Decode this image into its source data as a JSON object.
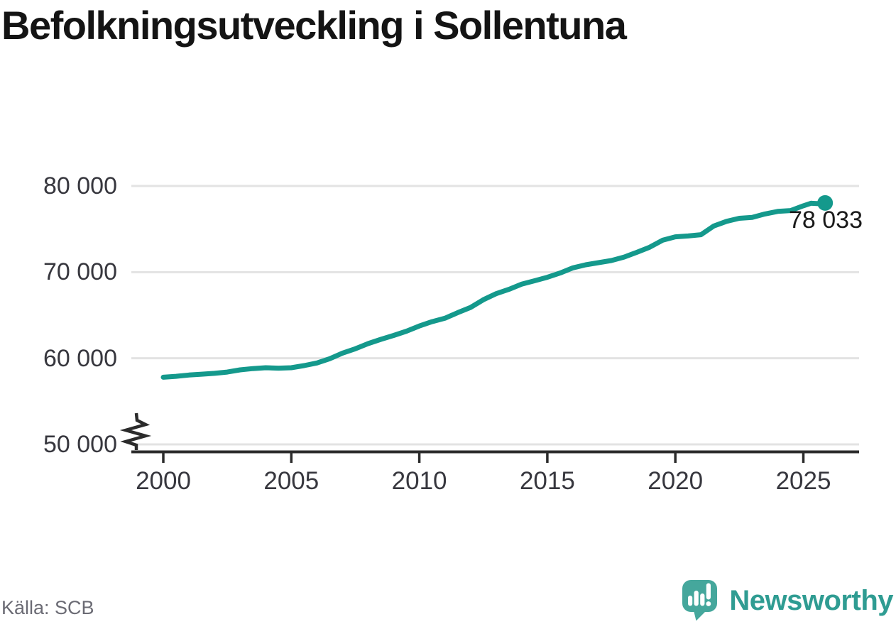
{
  "header": {
    "title": "Befolkningsutveckling i Sollentuna"
  },
  "chart": {
    "end_label": "78 033",
    "y_axis": {
      "tick_labels": [
        "80 000",
        "70 000",
        "60 000",
        "50 000"
      ],
      "tick_values": [
        80000,
        70000,
        60000,
        50000
      ],
      "axis_break": true
    },
    "x_axis": {
      "tick_labels": [
        "2000",
        "2005",
        "2010",
        "2015",
        "2020",
        "2025"
      ],
      "tick_values": [
        2000,
        2005,
        2010,
        2015,
        2020,
        2025
      ]
    }
  },
  "chart_data": {
    "type": "line",
    "title": "Befolkningsutveckling i Sollentuna",
    "xlabel": "",
    "ylabel": "",
    "xlim": [
      1998.75,
      2027.2
    ],
    "ylim": [
      50000,
      81000
    ],
    "grid": "horizontal",
    "axis_break_below": 50000,
    "x": [
      2000,
      2000.5,
      2001,
      2001.5,
      2002,
      2002.5,
      2003,
      2003.5,
      2004,
      2004.5,
      2005,
      2005.5,
      2006,
      2006.5,
      2007,
      2007.5,
      2008,
      2008.5,
      2009,
      2009.5,
      2010,
      2010.5,
      2011,
      2011.5,
      2012,
      2012.5,
      2013,
      2013.5,
      2014,
      2014.5,
      2015,
      2015.5,
      2016,
      2016.5,
      2017,
      2017.5,
      2018,
      2018.5,
      2019,
      2019.5,
      2020,
      2020.5,
      2021,
      2021.5,
      2022,
      2022.5,
      2023,
      2023.5,
      2024,
      2024.5,
      2025,
      2025.3,
      2025.6,
      2025.85
    ],
    "values": [
      57800,
      57900,
      58050,
      58150,
      58250,
      58400,
      58650,
      58800,
      58900,
      58850,
      58900,
      59150,
      59450,
      59950,
      60600,
      61100,
      61700,
      62200,
      62650,
      63150,
      63750,
      64250,
      64650,
      65300,
      65900,
      66800,
      67500,
      68000,
      68600,
      69000,
      69400,
      69900,
      70500,
      70850,
      71100,
      71350,
      71750,
      72300,
      72900,
      73700,
      74100,
      74200,
      74350,
      75350,
      75900,
      76250,
      76350,
      76750,
      77050,
      77150,
      77700,
      78000,
      77950,
      78033
    ],
    "end_point": {
      "x": 2025.85,
      "value": 78033,
      "label": "78 033"
    },
    "legend": "none"
  },
  "footer": {
    "source": "Källa: SCB",
    "brand": "Newsworthy",
    "brand_icon": "newsworthy-speech-bubble-bar-chart-icon"
  },
  "colors": {
    "line": "#14998c",
    "dot": "#14998c",
    "grid": "#e3e3e3",
    "axis": "#2b2b2b",
    "tick_text": "#37373e",
    "title_text": "#141414",
    "end_label_text": "#1a1a1a",
    "source_text": "#6b6b74",
    "brand_teal": "#2f9c92",
    "icon_teal": "#45a79c"
  }
}
